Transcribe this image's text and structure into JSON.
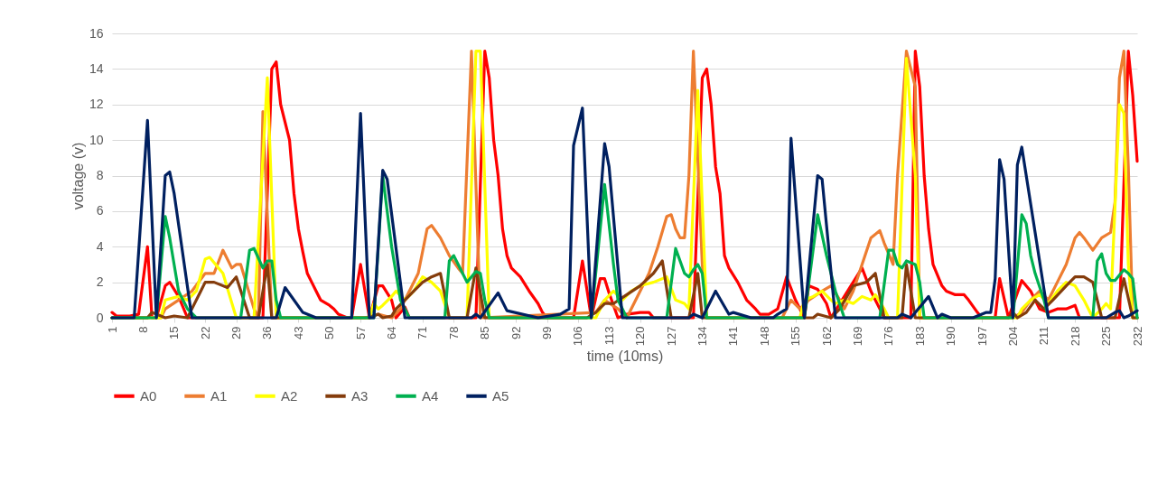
{
  "chart_data": {
    "type": "line",
    "xlabel": "time (10ms)",
    "ylabel": "voltage (v)",
    "xlim": [
      1,
      232
    ],
    "xticks": [
      1,
      8,
      15,
      22,
      29,
      36,
      43,
      50,
      57,
      64,
      71,
      78,
      85,
      92,
      99,
      106,
      113,
      120,
      127,
      134,
      141,
      148,
      155,
      162,
      169,
      176,
      183,
      190,
      197,
      204,
      211,
      218,
      225,
      232
    ],
    "ylim": [
      0,
      16
    ],
    "yticks": [
      0,
      2,
      4,
      6,
      8,
      10,
      12,
      14,
      16
    ],
    "grid": "y",
    "legend": "bottom",
    "series": [
      {
        "name": "A0",
        "color": "#ff0000",
        "x": [
          1,
          2,
          5,
          7,
          9,
          10,
          11,
          13,
          14,
          16,
          18,
          35,
          37,
          38,
          39,
          41,
          42,
          43,
          44,
          45,
          46,
          47,
          48,
          50,
          51,
          52,
          54,
          55,
          57,
          59,
          61,
          62,
          64,
          65,
          67,
          68,
          83,
          85,
          86,
          87,
          88,
          89,
          90,
          91,
          93,
          95,
          97,
          98,
          99,
          105,
          107,
          109,
          111,
          112,
          113,
          115,
          117,
          120,
          122,
          123,
          132,
          134,
          135,
          136,
          137,
          138,
          139,
          140,
          142,
          144,
          146,
          147,
          149,
          151,
          153,
          155,
          157,
          158,
          160,
          162,
          163,
          168,
          170,
          172,
          174,
          175,
          181,
          182,
          183,
          184,
          185,
          186,
          188,
          189,
          191,
          193,
          194,
          196,
          197,
          200,
          201,
          203,
          206,
          208,
          210,
          212,
          214,
          216,
          218,
          219,
          228,
          230,
          231,
          232
        ],
        "values": [
          0.3,
          0.1,
          0.1,
          0.2,
          4,
          0,
          0,
          1.8,
          2,
          1.2,
          0,
          0,
          14,
          14.4,
          12,
          10,
          7,
          5,
          3.7,
          2.5,
          2,
          1.5,
          1,
          0.7,
          0.5,
          0.2,
          0,
          0,
          3,
          0,
          1.8,
          1.8,
          1,
          0,
          0.6,
          0,
          0,
          15,
          13.5,
          10,
          8,
          5,
          3.5,
          2.8,
          2.3,
          1.5,
          0.8,
          0.3,
          0,
          0,
          3.2,
          0,
          2.2,
          2.2,
          1.4,
          0,
          0.2,
          0.3,
          0.3,
          0,
          0,
          13.5,
          14,
          12,
          8.5,
          7,
          3.5,
          2.8,
          2,
          1,
          0.5,
          0.2,
          0.2,
          0.5,
          2.3,
          1,
          0,
          1.8,
          1.6,
          0.8,
          0,
          2,
          2.8,
          1.5,
          0.5,
          0,
          0,
          15,
          13,
          8,
          5,
          3,
          1.8,
          1.5,
          1.3,
          1.3,
          1,
          0.3,
          0,
          0,
          2.2,
          0,
          2.1,
          1.5,
          0.5,
          0.3,
          0.5,
          0.5,
          0.7,
          0,
          0,
          15,
          12.5,
          8.8
        ]
      },
      {
        "name": "A1",
        "color": "#ed7d31",
        "x": [
          1,
          12,
          13,
          16,
          19,
          22,
          24,
          26,
          28,
          29,
          30,
          33,
          34,
          35,
          37,
          58,
          61,
          64,
          66,
          68,
          70,
          72,
          73,
          75,
          77,
          79,
          80,
          82,
          84,
          110,
          112,
          115,
          117,
          120,
          122,
          124,
          126,
          127,
          128,
          129,
          130,
          131,
          132,
          134,
          135,
          152,
          154,
          156,
          158,
          161,
          163,
          165,
          166,
          168,
          170,
          172,
          174,
          175,
          177,
          178,
          180,
          182,
          183,
          204,
          206,
          208,
          210,
          212,
          214,
          216,
          218,
          219,
          220,
          222,
          224,
          226,
          227,
          228,
          229,
          230,
          231,
          232
        ],
        "values": [
          0,
          0,
          0.5,
          1,
          1.5,
          2.5,
          2.5,
          3.8,
          2.8,
          3,
          3,
          0.5,
          0,
          11.6,
          0,
          0,
          0.2,
          0,
          0.5,
          1.5,
          2.5,
          5,
          5.2,
          4.5,
          3.5,
          2.8,
          2.5,
          15,
          0,
          0.3,
          1,
          0.5,
          0,
          1.5,
          2.5,
          4,
          5.7,
          5.8,
          5,
          4.5,
          4.5,
          8,
          15,
          3,
          0,
          0,
          1,
          0.5,
          1,
          1.5,
          1.8,
          1,
          0.5,
          1.5,
          3,
          4.5,
          4.9,
          4.2,
          3,
          8,
          15,
          13,
          0,
          0,
          0.3,
          1,
          1.5,
          1,
          2,
          3,
          4.5,
          4.8,
          4.5,
          3.8,
          4.5,
          4.8,
          6.5,
          13.5,
          15,
          8.5,
          0,
          0
        ]
      },
      {
        "name": "A2",
        "color": "#ffff00",
        "x": [
          1,
          12,
          13,
          16,
          18,
          20,
          22,
          23,
          26,
          29,
          33,
          36,
          38,
          59,
          60,
          61,
          62,
          64,
          65,
          67,
          69,
          71,
          73,
          75,
          77,
          81,
          83,
          84,
          86,
          110,
          112,
          114,
          116,
          118,
          120,
          123,
          126,
          128,
          130,
          131,
          133,
          135,
          156,
          157,
          159,
          161,
          163,
          164,
          166,
          168,
          170,
          172,
          173,
          175,
          176,
          178,
          180,
          182,
          183,
          205,
          206,
          208,
          210,
          212,
          214,
          216,
          218,
          220,
          222,
          224,
          225,
          226,
          228,
          229,
          230,
          231,
          232
        ],
        "values": [
          0,
          0,
          1,
          1.2,
          1,
          1.5,
          3.3,
          3.4,
          2.5,
          0,
          0,
          13.5,
          0,
          0,
          0.8,
          0.5,
          0.7,
          1.2,
          1.5,
          1,
          1.5,
          2.3,
          2,
          1.5,
          0,
          0,
          15,
          15,
          0,
          0,
          1,
          1.5,
          1,
          1.5,
          1.8,
          2,
          2.3,
          1,
          0.8,
          0.5,
          12.8,
          0,
          0,
          1,
          1.2,
          1.5,
          1,
          0.8,
          1,
          0.8,
          1.2,
          1,
          1.3,
          0.5,
          0,
          0,
          14.6,
          8,
          0,
          0,
          0.5,
          1,
          1.3,
          0.8,
          1.5,
          2,
          1.8,
          1,
          0,
          0.5,
          0.8,
          0.5,
          12,
          11.5,
          3,
          0,
          0
        ]
      },
      {
        "name": "A3",
        "color": "#843c0c",
        "x": [
          1,
          9,
          10,
          13,
          15,
          18,
          19,
          21,
          22,
          24,
          27,
          29,
          32,
          34,
          36,
          37,
          59,
          61,
          62,
          64,
          65,
          67,
          69,
          71,
          73,
          75,
          77,
          81,
          83,
          85,
          108,
          110,
          112,
          114,
          117,
          120,
          123,
          125,
          127,
          131,
          133,
          134,
          159,
          160,
          163,
          165,
          168,
          171,
          173,
          175,
          179,
          180,
          182,
          203,
          204,
          205,
          207,
          209,
          211,
          213,
          216,
          218,
          220,
          222,
          224,
          227,
          229,
          231,
          232
        ],
        "values": [
          0,
          0,
          0.3,
          0,
          0.1,
          0,
          0.5,
          1.5,
          2,
          2,
          1.7,
          2.3,
          0,
          0,
          3,
          0,
          0,
          0.2,
          0,
          0.1,
          0.5,
          1,
          1.5,
          2,
          2.3,
          2.5,
          0,
          0,
          2.8,
          0,
          0,
          0.3,
          0.8,
          0.8,
          1.3,
          1.8,
          2.5,
          3.2,
          0,
          0,
          2.5,
          0,
          0,
          0.2,
          0,
          0.5,
          1.8,
          2,
          2.5,
          0,
          0,
          3,
          0,
          0,
          0.3,
          0,
          0.3,
          1,
          0.5,
          1,
          1.8,
          2.3,
          2.3,
          2,
          0,
          0,
          2.2,
          0,
          0
        ]
      },
      {
        "name": "A4",
        "color": "#00b050",
        "x": [
          1,
          11,
          13,
          14,
          15,
          16,
          18,
          20,
          30,
          32,
          33,
          35,
          36,
          37,
          38,
          39,
          60,
          62,
          64,
          66,
          67,
          68,
          76,
          77,
          78,
          80,
          81,
          83,
          84,
          85,
          86,
          109,
          112,
          114,
          115,
          117,
          126,
          128,
          130,
          131,
          132,
          133,
          134,
          135,
          157,
          160,
          162,
          164,
          166,
          174,
          176,
          177,
          178,
          179,
          180,
          182,
          183,
          184,
          204,
          206,
          207,
          208,
          209,
          211,
          212,
          222,
          223,
          224,
          225,
          226,
          227,
          228,
          229,
          230,
          231,
          232
        ],
        "values": [
          0,
          0,
          5.7,
          4.5,
          3,
          1.5,
          0.5,
          0,
          0,
          3.8,
          3.9,
          2.8,
          3.2,
          3.2,
          1,
          0,
          0,
          8,
          4,
          1,
          0.5,
          0,
          0,
          3.2,
          3.5,
          2.5,
          2,
          2.6,
          2.5,
          1,
          0,
          0,
          7.5,
          3,
          1,
          0,
          0,
          3.9,
          2.5,
          2.3,
          2.7,
          3,
          2.5,
          0,
          0,
          5.8,
          3.5,
          1.5,
          0,
          0,
          3.8,
          3.8,
          3,
          2.8,
          3.2,
          3,
          2,
          0,
          0,
          5.8,
          5.3,
          3.5,
          2.5,
          1,
          0,
          0,
          3.2,
          3.6,
          2.5,
          2.1,
          2.1,
          2.4,
          2.7,
          2.5,
          2.2,
          0
        ]
      },
      {
        "name": "A5",
        "color": "#002060",
        "x": [
          1,
          6,
          9,
          11,
          13,
          14,
          15,
          19,
          38,
          40,
          44,
          47,
          55,
          57,
          59,
          60,
          62,
          63,
          67,
          82,
          83,
          84,
          88,
          90,
          97,
          102,
          104,
          105,
          107,
          109,
          112,
          113,
          116,
          131,
          132,
          134,
          137,
          140,
          141,
          145,
          150,
          151,
          153,
          154,
          157,
          160,
          161,
          164,
          178,
          179,
          181,
          185,
          187,
          188,
          190,
          195,
          198,
          199,
          200,
          201,
          202,
          204,
          205,
          206,
          212,
          225,
          227,
          228,
          229,
          230,
          232
        ],
        "values": [
          0,
          0,
          11.1,
          0,
          8,
          8.2,
          7,
          0,
          0,
          1.7,
          0.3,
          0,
          0,
          11.5,
          0,
          0,
          8.3,
          7.8,
          0,
          0,
          0.2,
          0,
          1.4,
          0.4,
          0,
          0.2,
          0.5,
          9.7,
          11.8,
          0,
          9.8,
          8.5,
          0,
          0,
          0.2,
          0,
          1.5,
          0.2,
          0.3,
          0,
          0,
          0.2,
          0.5,
          10.1,
          0,
          8,
          7.8,
          0,
          0,
          0.2,
          0,
          1.2,
          0,
          0.2,
          0,
          0,
          0.3,
          0.3,
          2.2,
          8.9,
          7.8,
          0,
          8.6,
          9.6,
          0,
          0,
          0.3,
          0.4,
          0,
          0.1,
          0.4
        ]
      }
    ]
  }
}
